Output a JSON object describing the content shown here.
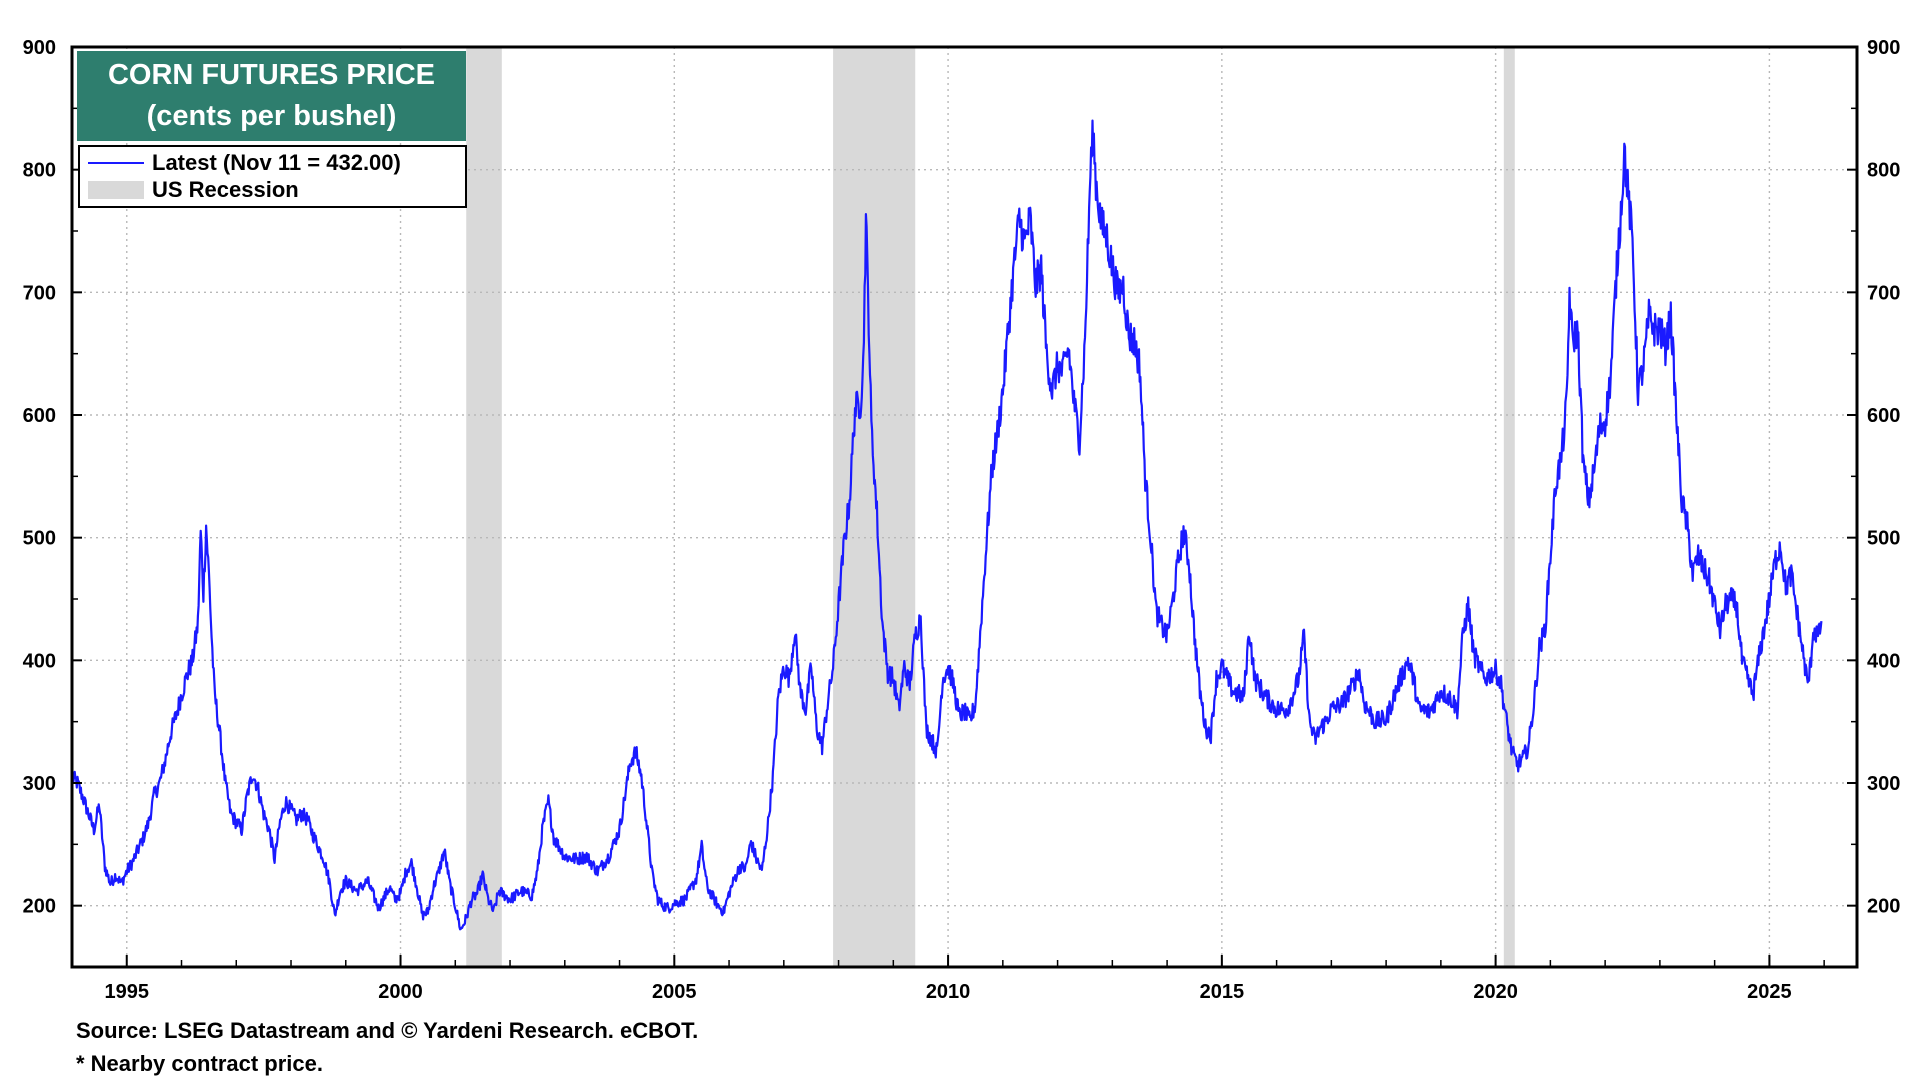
{
  "chart_data": {
    "type": "line",
    "title": "CORN FUTURES PRICE",
    "subtitle": "(cents per bushel)",
    "xlim": [
      1994.0,
      2026.6
    ],
    "ylim": [
      150,
      900
    ],
    "y_ticks": [
      200,
      300,
      400,
      500,
      600,
      700,
      800,
      900
    ],
    "x_ticks": [
      1995,
      2000,
      2005,
      2010,
      2015,
      2020,
      2025
    ],
    "y_axes": "left-and-right",
    "grid": true,
    "legend": {
      "placement": "top-left",
      "entries": [
        {
          "label": "Latest (Nov 11 = 432.00)",
          "kind": "line",
          "color": "#1a1aff"
        },
        {
          "label": "US Recession",
          "kind": "shade",
          "color": "#d9d9d9"
        }
      ]
    },
    "recessions": [
      [
        2001.2,
        2001.85
      ],
      [
        2007.9,
        2009.4
      ],
      [
        2020.15,
        2020.35
      ]
    ],
    "series": [
      {
        "color": "#1a1aff",
        "points": [
          [
            1994.0,
            305
          ],
          [
            1994.1,
            300
          ],
          [
            1994.2,
            288
          ],
          [
            1994.3,
            275
          ],
          [
            1994.4,
            262
          ],
          [
            1994.5,
            282
          ],
          [
            1994.6,
            232
          ],
          [
            1994.7,
            218
          ],
          [
            1994.8,
            225
          ],
          [
            1994.9,
            218
          ],
          [
            1995.0,
            228
          ],
          [
            1995.1,
            235
          ],
          [
            1995.2,
            245
          ],
          [
            1995.3,
            255
          ],
          [
            1995.4,
            268
          ],
          [
            1995.5,
            290
          ],
          [
            1995.6,
            300
          ],
          [
            1995.7,
            318
          ],
          [
            1995.8,
            340
          ],
          [
            1995.9,
            355
          ],
          [
            1996.0,
            372
          ],
          [
            1996.1,
            388
          ],
          [
            1996.2,
            400
          ],
          [
            1996.3,
            430
          ],
          [
            1996.35,
            505
          ],
          [
            1996.4,
            455
          ],
          [
            1996.45,
            510
          ],
          [
            1996.5,
            470
          ],
          [
            1996.55,
            420
          ],
          [
            1996.6,
            375
          ],
          [
            1996.7,
            340
          ],
          [
            1996.8,
            300
          ],
          [
            1996.9,
            275
          ],
          [
            1997.0,
            268
          ],
          [
            1997.1,
            262
          ],
          [
            1997.2,
            290
          ],
          [
            1997.3,
            308
          ],
          [
            1997.4,
            295
          ],
          [
            1997.5,
            275
          ],
          [
            1997.6,
            262
          ],
          [
            1997.7,
            238
          ],
          [
            1997.8,
            268
          ],
          [
            1997.9,
            285
          ],
          [
            1998.0,
            278
          ],
          [
            1998.1,
            270
          ],
          [
            1998.2,
            275
          ],
          [
            1998.3,
            270
          ],
          [
            1998.4,
            258
          ],
          [
            1998.5,
            248
          ],
          [
            1998.6,
            238
          ],
          [
            1998.7,
            220
          ],
          [
            1998.8,
            192
          ],
          [
            1998.9,
            212
          ],
          [
            1999.0,
            220
          ],
          [
            1999.2,
            212
          ],
          [
            1999.4,
            220
          ],
          [
            1999.6,
            198
          ],
          [
            1999.8,
            215
          ],
          [
            1999.9,
            205
          ],
          [
            2000.0,
            210
          ],
          [
            2000.1,
            228
          ],
          [
            2000.2,
            235
          ],
          [
            2000.3,
            215
          ],
          [
            2000.4,
            192
          ],
          [
            2000.5,
            195
          ],
          [
            2000.6,
            215
          ],
          [
            2000.7,
            228
          ],
          [
            2000.8,
            245
          ],
          [
            2000.9,
            218
          ],
          [
            2001.0,
            200
          ],
          [
            2001.1,
            180
          ],
          [
            2001.2,
            190
          ],
          [
            2001.3,
            205
          ],
          [
            2001.4,
            210
          ],
          [
            2001.5,
            225
          ],
          [
            2001.6,
            205
          ],
          [
            2001.7,
            195
          ],
          [
            2001.8,
            212
          ],
          [
            2002.0,
            205
          ],
          [
            2002.2,
            212
          ],
          [
            2002.4,
            208
          ],
          [
            2002.5,
            228
          ],
          [
            2002.6,
            265
          ],
          [
            2002.7,
            285
          ],
          [
            2002.8,
            255
          ],
          [
            2002.9,
            248
          ],
          [
            2003.0,
            240
          ],
          [
            2003.2,
            238
          ],
          [
            2003.4,
            240
          ],
          [
            2003.6,
            228
          ],
          [
            2003.8,
            240
          ],
          [
            2004.0,
            262
          ],
          [
            2004.1,
            290
          ],
          [
            2004.2,
            318
          ],
          [
            2004.3,
            325
          ],
          [
            2004.4,
            305
          ],
          [
            2004.5,
            265
          ],
          [
            2004.6,
            225
          ],
          [
            2004.7,
            205
          ],
          [
            2004.8,
            200
          ],
          [
            2004.9,
            198
          ],
          [
            2005.0,
            202
          ],
          [
            2005.2,
            205
          ],
          [
            2005.4,
            222
          ],
          [
            2005.5,
            248
          ],
          [
            2005.6,
            215
          ],
          [
            2005.8,
            200
          ],
          [
            2005.9,
            195
          ],
          [
            2006.0,
            210
          ],
          [
            2006.1,
            222
          ],
          [
            2006.2,
            232
          ],
          [
            2006.3,
            230
          ],
          [
            2006.4,
            252
          ],
          [
            2006.5,
            238
          ],
          [
            2006.6,
            228
          ],
          [
            2006.7,
            262
          ],
          [
            2006.8,
            305
          ],
          [
            2006.9,
            370
          ],
          [
            2007.0,
            395
          ],
          [
            2007.1,
            385
          ],
          [
            2007.2,
            425
          ],
          [
            2007.3,
            375
          ],
          [
            2007.4,
            360
          ],
          [
            2007.5,
            395
          ],
          [
            2007.6,
            345
          ],
          [
            2007.7,
            330
          ],
          [
            2007.8,
            365
          ],
          [
            2007.9,
            395
          ],
          [
            2008.0,
            445
          ],
          [
            2008.1,
            495
          ],
          [
            2008.2,
            530
          ],
          [
            2008.3,
            605
          ],
          [
            2008.4,
            610
          ],
          [
            2008.45,
            640
          ],
          [
            2008.5,
            760
          ],
          [
            2008.55,
            680
          ],
          [
            2008.6,
            590
          ],
          [
            2008.7,
            520
          ],
          [
            2008.8,
            430
          ],
          [
            2008.9,
            390
          ],
          [
            2009.0,
            385
          ],
          [
            2009.1,
            360
          ],
          [
            2009.2,
            395
          ],
          [
            2009.3,
            380
          ],
          [
            2009.4,
            420
          ],
          [
            2009.5,
            435
          ],
          [
            2009.6,
            345
          ],
          [
            2009.7,
            335
          ],
          [
            2009.8,
            325
          ],
          [
            2009.9,
            385
          ],
          [
            2010.0,
            395
          ],
          [
            2010.1,
            380
          ],
          [
            2010.2,
            355
          ],
          [
            2010.3,
            358
          ],
          [
            2010.4,
            350
          ],
          [
            2010.5,
            365
          ],
          [
            2010.6,
            430
          ],
          [
            2010.7,
            495
          ],
          [
            2010.8,
            555
          ],
          [
            2010.9,
            585
          ],
          [
            2011.0,
            620
          ],
          [
            2011.1,
            670
          ],
          [
            2011.2,
            720
          ],
          [
            2011.3,
            760
          ],
          [
            2011.4,
            740
          ],
          [
            2011.5,
            760
          ],
          [
            2011.6,
            705
          ],
          [
            2011.7,
            720
          ],
          [
            2011.8,
            650
          ],
          [
            2011.9,
            620
          ],
          [
            2012.0,
            640
          ],
          [
            2012.1,
            635
          ],
          [
            2012.2,
            655
          ],
          [
            2012.3,
            610
          ],
          [
            2012.4,
            580
          ],
          [
            2012.5,
            660
          ],
          [
            2012.6,
            800
          ],
          [
            2012.65,
            830
          ],
          [
            2012.7,
            790
          ],
          [
            2012.8,
            755
          ],
          [
            2012.9,
            745
          ],
          [
            2013.0,
            720
          ],
          [
            2013.1,
            700
          ],
          [
            2013.2,
            705
          ],
          [
            2013.3,
            665
          ],
          [
            2013.4,
            660
          ],
          [
            2013.5,
            640
          ],
          [
            2013.6,
            550
          ],
          [
            2013.7,
            500
          ],
          [
            2013.8,
            440
          ],
          [
            2013.9,
            428
          ],
          [
            2014.0,
            420
          ],
          [
            2014.1,
            448
          ],
          [
            2014.2,
            480
          ],
          [
            2014.3,
            505
          ],
          [
            2014.4,
            480
          ],
          [
            2014.5,
            420
          ],
          [
            2014.6,
            375
          ],
          [
            2014.7,
            345
          ],
          [
            2014.8,
            340
          ],
          [
            2014.9,
            385
          ],
          [
            2015.0,
            395
          ],
          [
            2015.2,
            375
          ],
          [
            2015.4,
            370
          ],
          [
            2015.5,
            425
          ],
          [
            2015.6,
            385
          ],
          [
            2015.8,
            370
          ],
          [
            2016.0,
            360
          ],
          [
            2016.2,
            360
          ],
          [
            2016.4,
            385
          ],
          [
            2016.5,
            420
          ],
          [
            2016.6,
            350
          ],
          [
            2016.7,
            335
          ],
          [
            2016.8,
            345
          ],
          [
            2016.9,
            350
          ],
          [
            2017.0,
            360
          ],
          [
            2017.2,
            365
          ],
          [
            2017.4,
            380
          ],
          [
            2017.5,
            392
          ],
          [
            2017.6,
            365
          ],
          [
            2017.8,
            350
          ],
          [
            2018.0,
            352
          ],
          [
            2018.2,
            378
          ],
          [
            2018.4,
            400
          ],
          [
            2018.5,
            385
          ],
          [
            2018.6,
            360
          ],
          [
            2018.8,
            358
          ],
          [
            2019.0,
            375
          ],
          [
            2019.2,
            368
          ],
          [
            2019.3,
            360
          ],
          [
            2019.4,
            420
          ],
          [
            2019.5,
            445
          ],
          [
            2019.6,
            405
          ],
          [
            2019.8,
            385
          ],
          [
            2020.0,
            392
          ],
          [
            2020.1,
            380
          ],
          [
            2020.2,
            350
          ],
          [
            2020.3,
            325
          ],
          [
            2020.4,
            315
          ],
          [
            2020.5,
            320
          ],
          [
            2020.6,
            330
          ],
          [
            2020.7,
            365
          ],
          [
            2020.8,
            410
          ],
          [
            2020.9,
            425
          ],
          [
            2021.0,
            485
          ],
          [
            2021.1,
            545
          ],
          [
            2021.2,
            565
          ],
          [
            2021.3,
            610
          ],
          [
            2021.35,
            700
          ],
          [
            2021.4,
            660
          ],
          [
            2021.5,
            670
          ],
          [
            2021.6,
            560
          ],
          [
            2021.7,
            530
          ],
          [
            2021.8,
            555
          ],
          [
            2021.9,
            590
          ],
          [
            2022.0,
            595
          ],
          [
            2022.1,
            630
          ],
          [
            2022.2,
            710
          ],
          [
            2022.3,
            775
          ],
          [
            2022.35,
            815
          ],
          [
            2022.4,
            790
          ],
          [
            2022.5,
            740
          ],
          [
            2022.6,
            620
          ],
          [
            2022.7,
            640
          ],
          [
            2022.8,
            680
          ],
          [
            2022.9,
            670
          ],
          [
            2023.0,
            670
          ],
          [
            2023.1,
            655
          ],
          [
            2023.2,
            680
          ],
          [
            2023.3,
            600
          ],
          [
            2023.4,
            530
          ],
          [
            2023.5,
            510
          ],
          [
            2023.6,
            470
          ],
          [
            2023.7,
            485
          ],
          [
            2023.8,
            475
          ],
          [
            2023.9,
            465
          ],
          [
            2024.0,
            445
          ],
          [
            2024.1,
            425
          ],
          [
            2024.2,
            445
          ],
          [
            2024.3,
            450
          ],
          [
            2024.4,
            445
          ],
          [
            2024.5,
            400
          ],
          [
            2024.6,
            385
          ],
          [
            2024.7,
            372
          ],
          [
            2024.8,
            400
          ],
          [
            2024.9,
            425
          ],
          [
            2025.0,
            450
          ],
          [
            2025.1,
            480
          ],
          [
            2025.2,
            495
          ],
          [
            2025.3,
            460
          ],
          [
            2025.4,
            470
          ],
          [
            2025.5,
            440
          ],
          [
            2025.6,
            410
          ],
          [
            2025.7,
            380
          ],
          [
            2025.75,
            395
          ],
          [
            2025.8,
            425
          ],
          [
            2025.9,
            420
          ],
          [
            2025.95,
            432
          ]
        ]
      }
    ]
  },
  "footer": {
    "source": "Source: LSEG Datastream and © Yardeni Research. eCBOT.",
    "note": "* Nearby contract price."
  }
}
